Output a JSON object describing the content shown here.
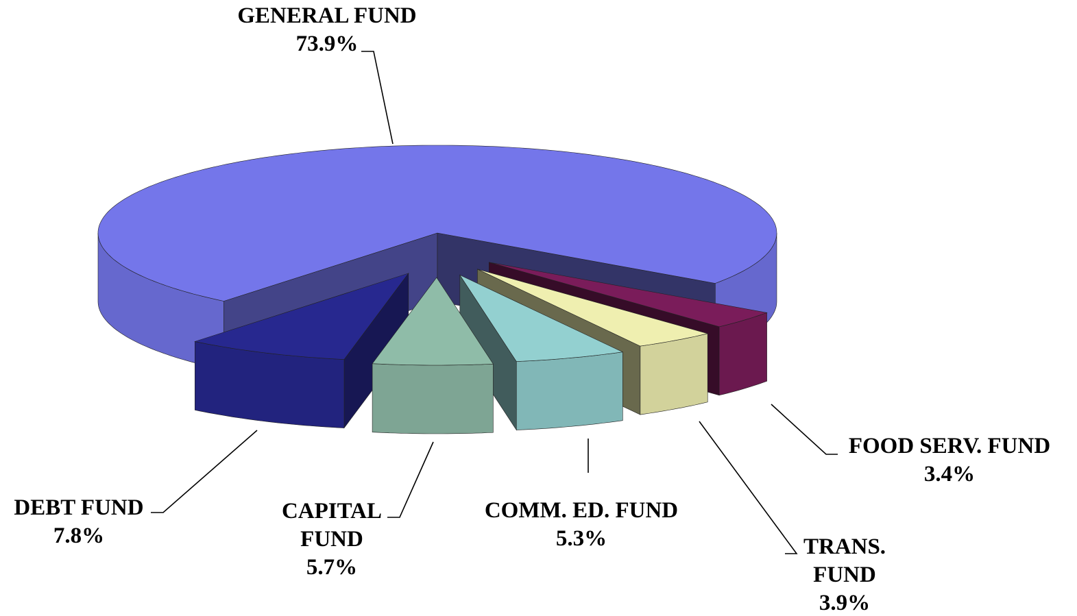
{
  "chart_data": {
    "type": "pie3d",
    "categories": [
      "GENERAL FUND",
      "FOOD SERV. FUND",
      "TRANS. FUND",
      "COMM. ED. FUND",
      "CAPITAL FUND",
      "DEBT FUND"
    ],
    "values": [
      73.9,
      3.4,
      3.9,
      5.3,
      5.7,
      7.8
    ],
    "value_labels": [
      "73.9%",
      "3.4%",
      "3.9%",
      "5.3%",
      "5.7%",
      "7.8%"
    ],
    "colors": [
      "#7476ea",
      "#7a1c5a",
      "#efefb0",
      "#93d0d0",
      "#8fbca8",
      "#27288f"
    ]
  }
}
